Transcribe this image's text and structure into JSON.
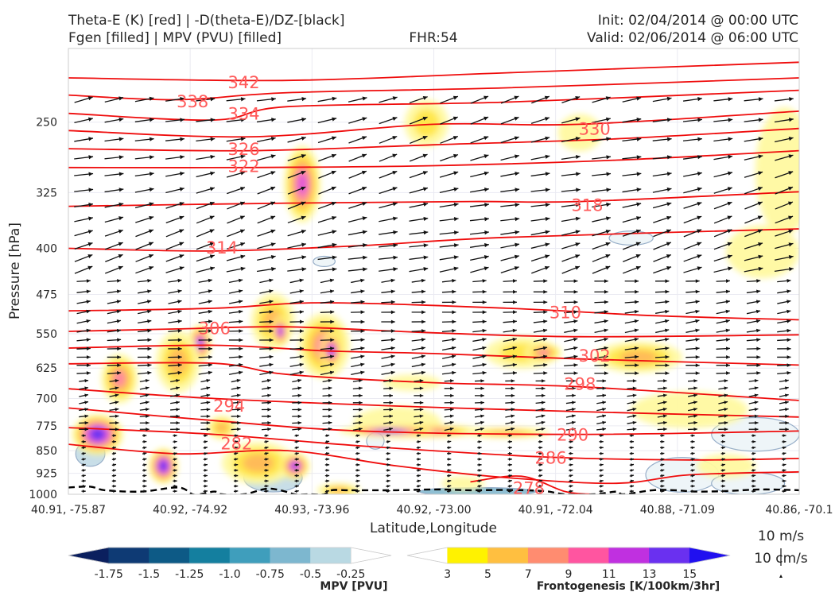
{
  "header": {
    "title_line1": "Theta-E (K) [red] | -D(theta-E)/DZ-[black]",
    "title_line2": "Fgen [filled] | MPV (PVU) [filled]",
    "fhr": "FHR:54",
    "init": "Init: 02/04/2014 @ 00:00 UTC",
    "valid": "Valid: 02/06/2014 @ 06:00 UTC"
  },
  "chart_data": {
    "type": "contour",
    "xlabel": "Latitude,Longitude",
    "ylabel": "Pressure [hPa]",
    "ylim": [
      1000,
      190
    ],
    "y_scale": "log",
    "x_ticks": [
      "40.91, -75.87",
      "40.92, -74.92",
      "40.93, -73.96",
      "40.92, -73.00",
      "40.91, -72.04",
      "40.88, -71.09",
      "40.86, -70.1"
    ],
    "y_ticks": [
      250,
      325,
      400,
      475,
      550,
      625,
      700,
      775,
      850,
      925,
      1000
    ],
    "grid": true,
    "theta_e_contours": [
      {
        "label": "342",
        "level": 342,
        "pts": [
          [
            0,
            212
          ],
          [
            0.3,
            214
          ],
          [
            0.6,
            208
          ],
          [
            1,
            200
          ]
        ]
      },
      {
        "label": "338",
        "level": 338,
        "pts": [
          [
            0,
            226
          ],
          [
            0.15,
            230
          ],
          [
            0.3,
            224
          ],
          [
            0.6,
            220
          ],
          [
            1,
            212
          ]
        ]
      },
      {
        "label": "334",
        "level": 334,
        "pts": [
          [
            0,
            242
          ],
          [
            0.2,
            248
          ],
          [
            0.3,
            236
          ],
          [
            0.6,
            232
          ],
          [
            1,
            222
          ]
        ]
      },
      {
        "label": "330",
        "level": 330,
        "pts": [
          [
            0,
            258
          ],
          [
            0.25,
            264
          ],
          [
            0.5,
            252
          ],
          [
            0.7,
            252
          ],
          [
            1,
            240
          ]
        ]
      },
      {
        "label": "326",
        "level": 326,
        "pts": [
          [
            0,
            276
          ],
          [
            0.25,
            278
          ],
          [
            0.5,
            272
          ],
          [
            0.75,
            266
          ],
          [
            1,
            256
          ]
        ]
      },
      {
        "label": "322",
        "level": 322,
        "pts": [
          [
            0,
            296
          ],
          [
            0.25,
            296
          ],
          [
            0.5,
            294
          ],
          [
            0.75,
            288
          ],
          [
            1,
            278
          ]
        ]
      },
      {
        "label": "318",
        "level": 318,
        "pts": [
          [
            0,
            342
          ],
          [
            0.3,
            338
          ],
          [
            0.55,
            336
          ],
          [
            0.7,
            336
          ],
          [
            1,
            324
          ]
        ]
      },
      {
        "label": "314",
        "level": 314,
        "pts": [
          [
            0,
            400
          ],
          [
            0.2,
            404
          ],
          [
            0.4,
            396
          ],
          [
            0.6,
            384
          ],
          [
            1,
            372
          ]
        ]
      },
      {
        "label": "310",
        "level": 310,
        "pts": [
          [
            0,
            505
          ],
          [
            0.2,
            500
          ],
          [
            0.35,
            490
          ],
          [
            0.6,
            500
          ],
          [
            0.8,
            514
          ],
          [
            1,
            522
          ]
        ]
      },
      {
        "label": "306",
        "level": 306,
        "pts": [
          [
            0,
            545
          ],
          [
            0.15,
            540
          ],
          [
            0.3,
            536
          ],
          [
            0.5,
            548
          ],
          [
            0.7,
            556
          ],
          [
            1,
            552
          ]
        ]
      },
      {
        "label": "302",
        "level": 302,
        "pts": [
          [
            0,
            580
          ],
          [
            0.2,
            574
          ],
          [
            0.35,
            586
          ],
          [
            0.5,
            592
          ],
          [
            0.7,
            604
          ],
          [
            1,
            618
          ]
        ]
      },
      {
        "label": "298",
        "level": 298,
        "pts": [
          [
            0,
            615
          ],
          [
            0.2,
            614
          ],
          [
            0.3,
            640
          ],
          [
            0.5,
            660
          ],
          [
            0.7,
            670
          ],
          [
            1,
            705
          ]
        ]
      },
      {
        "label": "294",
        "level": 294,
        "pts": [
          [
            0,
            675
          ],
          [
            0.2,
            700
          ],
          [
            0.45,
            720
          ],
          [
            0.7,
            735
          ],
          [
            1,
            750
          ]
        ]
      },
      {
        "label": "290",
        "level": 290,
        "pts": [
          [
            0,
            725
          ],
          [
            0.2,
            760
          ],
          [
            0.4,
            790
          ],
          [
            0.7,
            800
          ],
          [
            1,
            790
          ]
        ]
      },
      {
        "label": "286",
        "level": 286,
        "pts": [
          [
            0,
            780
          ],
          [
            0.2,
            800
          ],
          [
            0.4,
            835
          ],
          [
            0.65,
            870
          ],
          [
            0.85,
            880
          ],
          [
            1,
            875
          ]
        ]
      },
      {
        "label": "282",
        "level": 282,
        "pts": [
          [
            0,
            830
          ],
          [
            0.15,
            860
          ],
          [
            0.3,
            850
          ],
          [
            0.45,
            900
          ],
          [
            0.6,
            940
          ],
          [
            0.75,
            960
          ],
          [
            0.85,
            930
          ],
          [
            1,
            920
          ]
        ]
      },
      {
        "label": "278",
        "level": 278,
        "pts": [
          [
            0.55,
            955
          ],
          [
            0.62,
            935
          ],
          [
            0.68,
            990
          ],
          [
            0.72,
            1000
          ]
        ]
      }
    ],
    "theta_e_labels": [
      {
        "text": "342",
        "x": 0.24,
        "p": 215
      },
      {
        "text": "338",
        "x": 0.17,
        "p": 231
      },
      {
        "text": "334",
        "x": 0.24,
        "p": 242
      },
      {
        "text": "330",
        "x": 0.72,
        "p": 256
      },
      {
        "text": "326",
        "x": 0.24,
        "p": 276
      },
      {
        "text": "322",
        "x": 0.24,
        "p": 294
      },
      {
        "text": "318",
        "x": 0.71,
        "p": 340
      },
      {
        "text": "314",
        "x": 0.21,
        "p": 398
      },
      {
        "text": "310",
        "x": 0.68,
        "p": 507
      },
      {
        "text": "306",
        "x": 0.2,
        "p": 538
      },
      {
        "text": "302",
        "x": 0.72,
        "p": 596
      },
      {
        "text": "298",
        "x": 0.7,
        "p": 662
      },
      {
        "text": "294",
        "x": 0.22,
        "p": 718
      },
      {
        "text": "290",
        "x": 0.69,
        "p": 800
      },
      {
        "text": "286",
        "x": 0.66,
        "p": 872
      },
      {
        "text": "282",
        "x": 0.23,
        "p": 826
      },
      {
        "text": "278",
        "x": 0.63,
        "p": 975
      }
    ],
    "fgen_blobs": [
      {
        "x": 0.49,
        "p": 251,
        "rx": 0.03,
        "rp": 22,
        "level": 5
      },
      {
        "x": 0.32,
        "p": 315,
        "rx": 0.025,
        "rp": 45,
        "level": 11
      },
      {
        "x": 0.7,
        "p": 260,
        "rx": 0.03,
        "rp": 18,
        "level": 3
      },
      {
        "x": 0.98,
        "p": 300,
        "rx": 0.04,
        "rp": 70,
        "level": 3
      },
      {
        "x": 0.95,
        "p": 405,
        "rx": 0.05,
        "rp": 40,
        "level": 3
      },
      {
        "x": 0.28,
        "p": 525,
        "rx": 0.03,
        "rp": 55,
        "level": 7
      },
      {
        "x": 0.29,
        "p": 545,
        "rx": 0.012,
        "rp": 30,
        "level": 13
      },
      {
        "x": 0.35,
        "p": 575,
        "rx": 0.035,
        "rp": 70,
        "level": 9
      },
      {
        "x": 0.36,
        "p": 585,
        "rx": 0.015,
        "rp": 40,
        "level": 13
      },
      {
        "x": 0.18,
        "p": 570,
        "rx": 0.015,
        "rp": 40,
        "level": 13
      },
      {
        "x": 0.15,
        "p": 610,
        "rx": 0.03,
        "rp": 70,
        "level": 7
      },
      {
        "x": 0.07,
        "p": 650,
        "rx": 0.025,
        "rp": 60,
        "level": 9
      },
      {
        "x": 0.62,
        "p": 590,
        "rx": 0.05,
        "rp": 35,
        "level": 5
      },
      {
        "x": 0.65,
        "p": 590,
        "rx": 0.025,
        "rp": 22,
        "level": 9
      },
      {
        "x": 0.78,
        "p": 600,
        "rx": 0.06,
        "rp": 35,
        "level": 7
      },
      {
        "x": 0.47,
        "p": 660,
        "rx": 0.04,
        "rp": 20,
        "level": 3
      },
      {
        "x": 0.45,
        "p": 765,
        "rx": 0.06,
        "rp": 45,
        "level": 3
      },
      {
        "x": 0.47,
        "p": 790,
        "rx": 0.1,
        "rp": 20,
        "level": 11
      },
      {
        "x": 0.44,
        "p": 790,
        "rx": 0.06,
        "rp": 15,
        "level": 15
      },
      {
        "x": 0.6,
        "p": 795,
        "rx": 0.06,
        "rp": 15,
        "level": 7
      },
      {
        "x": 0.04,
        "p": 800,
        "rx": 0.035,
        "rp": 60,
        "level": 15
      },
      {
        "x": 0.21,
        "p": 780,
        "rx": 0.02,
        "rp": 35,
        "level": 7
      },
      {
        "x": 0.13,
        "p": 900,
        "rx": 0.02,
        "rp": 60,
        "level": 15
      },
      {
        "x": 0.26,
        "p": 890,
        "rx": 0.05,
        "rp": 70,
        "level": 7
      },
      {
        "x": 0.31,
        "p": 900,
        "rx": 0.02,
        "rp": 45,
        "level": 13
      },
      {
        "x": 0.37,
        "p": 985,
        "rx": 0.03,
        "rp": 25,
        "level": 7
      },
      {
        "x": 0.54,
        "p": 960,
        "rx": 0.03,
        "rp": 25,
        "level": 3
      },
      {
        "x": 0.9,
        "p": 900,
        "rx": 0.04,
        "rp": 40,
        "level": 3
      },
      {
        "x": 0.85,
        "p": 730,
        "rx": 0.08,
        "rp": 50,
        "level": 3
      }
    ],
    "mpv_regions": [
      {
        "x": 0.77,
        "p": 385,
        "rx": 0.03,
        "rp": 10,
        "level": -0.25
      },
      {
        "x": 0.35,
        "p": 420,
        "rx": 0.015,
        "rp": 8,
        "level": -0.25
      },
      {
        "x": 0.94,
        "p": 800,
        "rx": 0.06,
        "rp": 50,
        "level": -0.25
      },
      {
        "x": 0.84,
        "p": 930,
        "rx": 0.05,
        "rp": 60,
        "level": -0.25
      },
      {
        "x": 0.93,
        "p": 960,
        "rx": 0.05,
        "rp": 40,
        "level": -0.25
      },
      {
        "x": 0.28,
        "p": 940,
        "rx": 0.04,
        "rp": 50,
        "level": -0.5
      },
      {
        "x": 0.03,
        "p": 860,
        "rx": 0.02,
        "rp": 40,
        "level": -0.5
      },
      {
        "x": 0.42,
        "p": 820,
        "rx": 0.012,
        "rp": 25,
        "level": -0.25
      },
      {
        "x": 0.56,
        "p": 990,
        "rx": 0.08,
        "rp": 15,
        "level": -0.75
      }
    ],
    "stability_contour": {
      "style": "dashed",
      "color": "black",
      "pts": [
        [
          0,
          975
        ],
        [
          0.03,
          972
        ],
        [
          0.05,
          985
        ],
        [
          0.1,
          990
        ],
        [
          0.15,
          975
        ],
        [
          0.17,
          1000
        ],
        [
          0.18,
          1000
        ],
        [
          0.2,
          990
        ],
        [
          0.21,
          1000
        ],
        [
          0.24,
          1000
        ],
        [
          0.27,
          980
        ],
        [
          0.29,
          985
        ],
        [
          0.31,
          1000
        ],
        [
          0.33,
          1000
        ],
        [
          0.35,
          1000
        ],
        [
          0.36,
          985
        ],
        [
          0.38,
          985
        ],
        [
          0.4,
          985
        ],
        [
          0.45,
          985
        ],
        [
          0.5,
          982
        ],
        [
          0.55,
          985
        ],
        [
          0.6,
          984
        ],
        [
          0.65,
          988
        ],
        [
          0.68,
          1000
        ],
        [
          0.72,
          1000
        ],
        [
          0.75,
          990
        ],
        [
          0.76,
          1000
        ],
        [
          0.8,
          985
        ],
        [
          0.83,
          985
        ],
        [
          0.86,
          990
        ],
        [
          0.9,
          988
        ],
        [
          0.95,
          982
        ],
        [
          1,
          985
        ]
      ]
    },
    "wind_scale": {
      "speed_label": "10 m/s",
      "vertical_label": "10 cm/s"
    }
  },
  "colorbars": {
    "mpv": {
      "label": "MPV [PVU]",
      "ticks": [
        "-1.75",
        "-1.5",
        "-1.25",
        "-1.0",
        "-0.75",
        "-0.5",
        "-0.25"
      ],
      "colors": [
        "#0b1f5e",
        "#0e3a74",
        "#0d5a86",
        "#147f9f",
        "#3f9ebc",
        "#7db7cf",
        "#b9d9e3",
        "#ffffff"
      ]
    },
    "fgen": {
      "label": "Frontogenesis [K/100km/3hr]",
      "ticks": [
        "3",
        "5",
        "7",
        "9",
        "11",
        "13",
        "15"
      ],
      "colors": [
        "#ffffff",
        "#fff200",
        "#ffbf40",
        "#ff8c70",
        "#ff55a0",
        "#c030e0",
        "#6a30f0",
        "#2010f0"
      ]
    }
  },
  "colors": {
    "fgen_levels": {
      "3": "#fff9a0",
      "5": "#ffe74a",
      "7": "#ffb85a",
      "9": "#ff86a0",
      "11": "#e055d8",
      "13": "#8a3cf0",
      "15": "#5b2ff0"
    },
    "mpv_levels": {
      "-0.25": "#eef5f8",
      "-0.5": "#c8dee8",
      "-0.75": "#8fbfd3"
    },
    "theta_e": "#ef0c0c",
    "theta_label": "#ff5a5a",
    "vectors": "#111111"
  }
}
